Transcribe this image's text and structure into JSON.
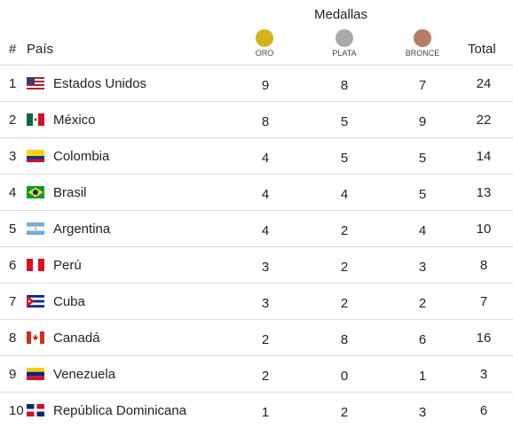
{
  "header": {
    "medallas": "Medallas",
    "rank": "#",
    "pais": "País",
    "total": "Total",
    "oro": "ORO",
    "plata": "PLATA",
    "bronce": "BRONCE"
  },
  "colors": {
    "oro": "#d4b21c",
    "plata": "#a9a9a9",
    "bronce": "#b67d67",
    "divider": "#dcdcdc"
  },
  "rows": [
    {
      "rank": "1",
      "flag": "usa-flag-icon",
      "pais": "Estados Unidos",
      "oro": "9",
      "plata": "8",
      "bronce": "7",
      "total": "24"
    },
    {
      "rank": "2",
      "flag": "mexico-flag-icon",
      "pais": "México",
      "oro": "8",
      "plata": "5",
      "bronce": "9",
      "total": "22"
    },
    {
      "rank": "3",
      "flag": "colombia-flag-icon",
      "pais": "Colombia",
      "oro": "4",
      "plata": "5",
      "bronce": "5",
      "total": "14"
    },
    {
      "rank": "4",
      "flag": "brazil-flag-icon",
      "pais": "Brasil",
      "oro": "4",
      "plata": "4",
      "bronce": "5",
      "total": "13"
    },
    {
      "rank": "5",
      "flag": "argentina-flag-icon",
      "pais": "Argentina",
      "oro": "4",
      "plata": "2",
      "bronce": "4",
      "total": "10"
    },
    {
      "rank": "6",
      "flag": "peru-flag-icon",
      "pais": "Perú",
      "oro": "3",
      "plata": "2",
      "bronce": "3",
      "total": "8"
    },
    {
      "rank": "7",
      "flag": "cuba-flag-icon",
      "pais": "Cuba",
      "oro": "3",
      "plata": "2",
      "bronce": "2",
      "total": "7"
    },
    {
      "rank": "8",
      "flag": "canada-flag-icon",
      "pais": "Canadá",
      "oro": "2",
      "plata": "8",
      "bronce": "6",
      "total": "16"
    },
    {
      "rank": "9",
      "flag": "venezuela-flag-icon",
      "pais": "Venezuela",
      "oro": "2",
      "plata": "0",
      "bronce": "1",
      "total": "3"
    },
    {
      "rank": "10",
      "flag": "dominican-republic-flag-icon",
      "pais": "República Dominicana",
      "oro": "1",
      "plata": "2",
      "bronce": "3",
      "total": "6"
    }
  ]
}
